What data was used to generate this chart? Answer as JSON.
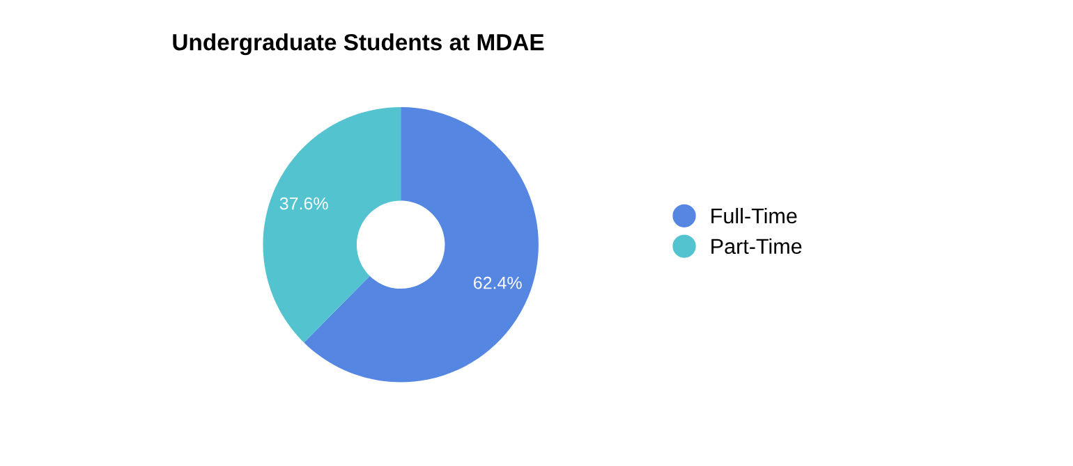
{
  "chart_data": {
    "type": "donut",
    "title": "Undergraduate Students at MDAE",
    "categories": [
      "Full-Time",
      "Part-Time"
    ],
    "values": [
      62.4,
      37.6
    ],
    "colors": [
      "#5586e2",
      "#52c3cf"
    ],
    "value_labels": [
      "62.4%",
      "37.6%"
    ],
    "legend": "right"
  }
}
